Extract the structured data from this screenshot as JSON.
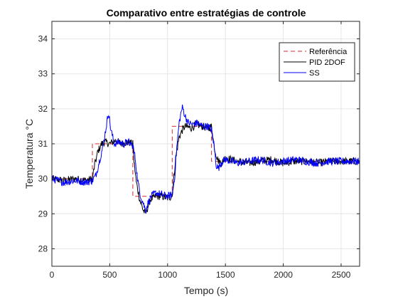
{
  "chart_data": {
    "type": "line",
    "title": "Comparativo entre estratégias de controle",
    "xlabel": "Tempo (s)",
    "ylabel": "Temperatura °C",
    "xlim": [
      0,
      2660
    ],
    "ylim": [
      27.5,
      34.5
    ],
    "xticks": [
      0,
      500,
      1000,
      1500,
      2000,
      2500
    ],
    "yticks": [
      28,
      29,
      30,
      31,
      32,
      33,
      34
    ],
    "grid": true,
    "legend_position": "top-right",
    "series": [
      {
        "name": "Referência",
        "color": "#d62728",
        "style": "dashed",
        "x": [
          0,
          350,
          350,
          700,
          700,
          1040,
          1040,
          1380,
          1380,
          2660
        ],
        "y": [
          30,
          30,
          31,
          31,
          29.5,
          29.5,
          31.5,
          31.5,
          30.5,
          30.5
        ]
      },
      {
        "name": "PID 2DOF",
        "color": "#000000",
        "style": "solid",
        "x": [
          0,
          100,
          200,
          300,
          350,
          370,
          400,
          430,
          460,
          500,
          550,
          600,
          650,
          700,
          710,
          730,
          760,
          790,
          810,
          850,
          900,
          950,
          1000,
          1040,
          1050,
          1070,
          1100,
          1130,
          1150,
          1200,
          1250,
          1300,
          1350,
          1380,
          1390,
          1410,
          1440,
          1470,
          1500,
          1600,
          1700,
          1800,
          1900,
          2000,
          2100,
          2200,
          2300,
          2400,
          2500,
          2600,
          2660
        ],
        "y": [
          30.0,
          29.95,
          30.0,
          29.95,
          30.0,
          30.4,
          30.8,
          31.0,
          31.05,
          31.0,
          31.1,
          31.0,
          31.05,
          31.0,
          30.5,
          29.9,
          29.4,
          29.1,
          29.0,
          29.4,
          29.5,
          29.5,
          29.45,
          29.5,
          29.9,
          30.6,
          31.2,
          31.4,
          31.5,
          31.45,
          31.55,
          31.5,
          31.45,
          31.5,
          31.2,
          30.8,
          30.5,
          30.45,
          30.6,
          30.5,
          30.45,
          30.5,
          30.55,
          30.45,
          30.5,
          30.5,
          30.45,
          30.5,
          30.5,
          30.5,
          30.5
        ]
      },
      {
        "name": "SS",
        "color": "#0000ff",
        "style": "solid",
        "x": [
          0,
          100,
          200,
          300,
          350,
          380,
          410,
          440,
          460,
          480,
          490,
          510,
          540,
          580,
          620,
          660,
          700,
          720,
          740,
          760,
          790,
          810,
          830,
          860,
          900,
          950,
          1000,
          1040,
          1060,
          1080,
          1100,
          1120,
          1130,
          1150,
          1180,
          1220,
          1260,
          1300,
          1350,
          1380,
          1400,
          1420,
          1440,
          1470,
          1500,
          1600,
          1700,
          1800,
          1900,
          2000,
          2100,
          2200,
          2300,
          2400,
          2500,
          2600,
          2660
        ],
        "y": [
          30.0,
          29.9,
          29.95,
          29.9,
          29.95,
          30.1,
          30.5,
          30.9,
          31.3,
          31.7,
          31.9,
          31.4,
          31.0,
          31.05,
          31.0,
          31.05,
          30.95,
          30.6,
          30.0,
          29.6,
          29.3,
          29.1,
          29.3,
          29.5,
          29.6,
          29.55,
          29.5,
          29.55,
          30.0,
          30.9,
          31.6,
          31.95,
          32.05,
          31.8,
          31.6,
          31.55,
          31.6,
          31.5,
          31.5,
          31.4,
          31.0,
          30.4,
          30.3,
          30.5,
          30.55,
          30.45,
          30.5,
          30.55,
          30.45,
          30.5,
          30.55,
          30.5,
          30.45,
          30.5,
          30.5,
          30.5,
          30.5
        ]
      }
    ]
  }
}
